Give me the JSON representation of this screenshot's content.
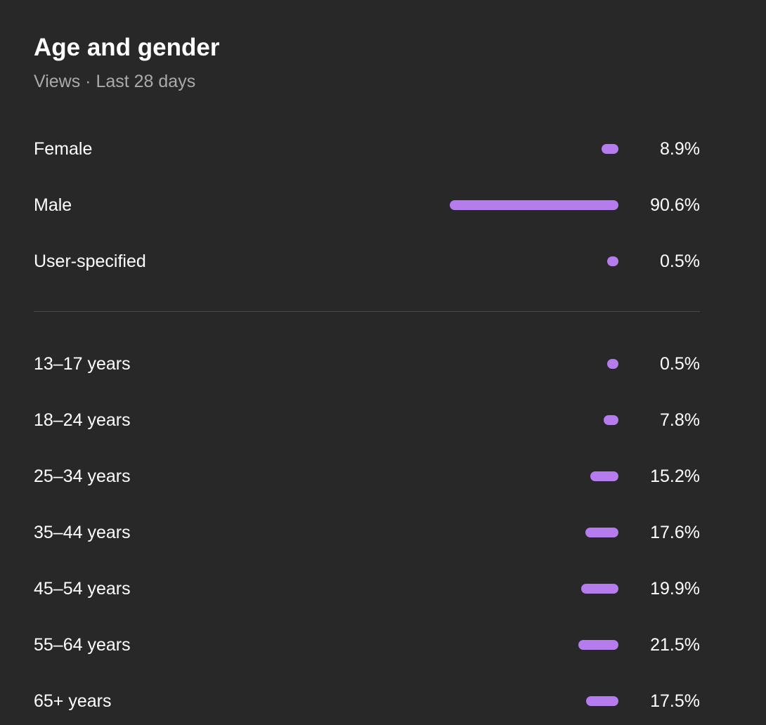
{
  "card": {
    "title": "Age and gender",
    "subtitle": "Views · Last 28 days"
  },
  "colors": {
    "bar": "#b47ced",
    "background": "#282828",
    "divider": "#4a4a4a"
  },
  "gender": [
    {
      "label": "Female",
      "value_text": "8.9%",
      "percent": 8.9
    },
    {
      "label": "Male",
      "value_text": "90.6%",
      "percent": 90.6
    },
    {
      "label": "User-specified",
      "value_text": "0.5%",
      "percent": 0.5
    }
  ],
  "age": [
    {
      "label": "13–17 years",
      "value_text": "0.5%",
      "percent": 0.5
    },
    {
      "label": "18–24 years",
      "value_text": "7.8%",
      "percent": 7.8
    },
    {
      "label": "25–34 years",
      "value_text": "15.2%",
      "percent": 15.2
    },
    {
      "label": "35–44 years",
      "value_text": "17.6%",
      "percent": 17.6
    },
    {
      "label": "45–54 years",
      "value_text": "19.9%",
      "percent": 19.9
    },
    {
      "label": "55–64 years",
      "value_text": "21.5%",
      "percent": 21.5
    },
    {
      "label": "65+ years",
      "value_text": "17.5%",
      "percent": 17.5
    }
  ]
}
